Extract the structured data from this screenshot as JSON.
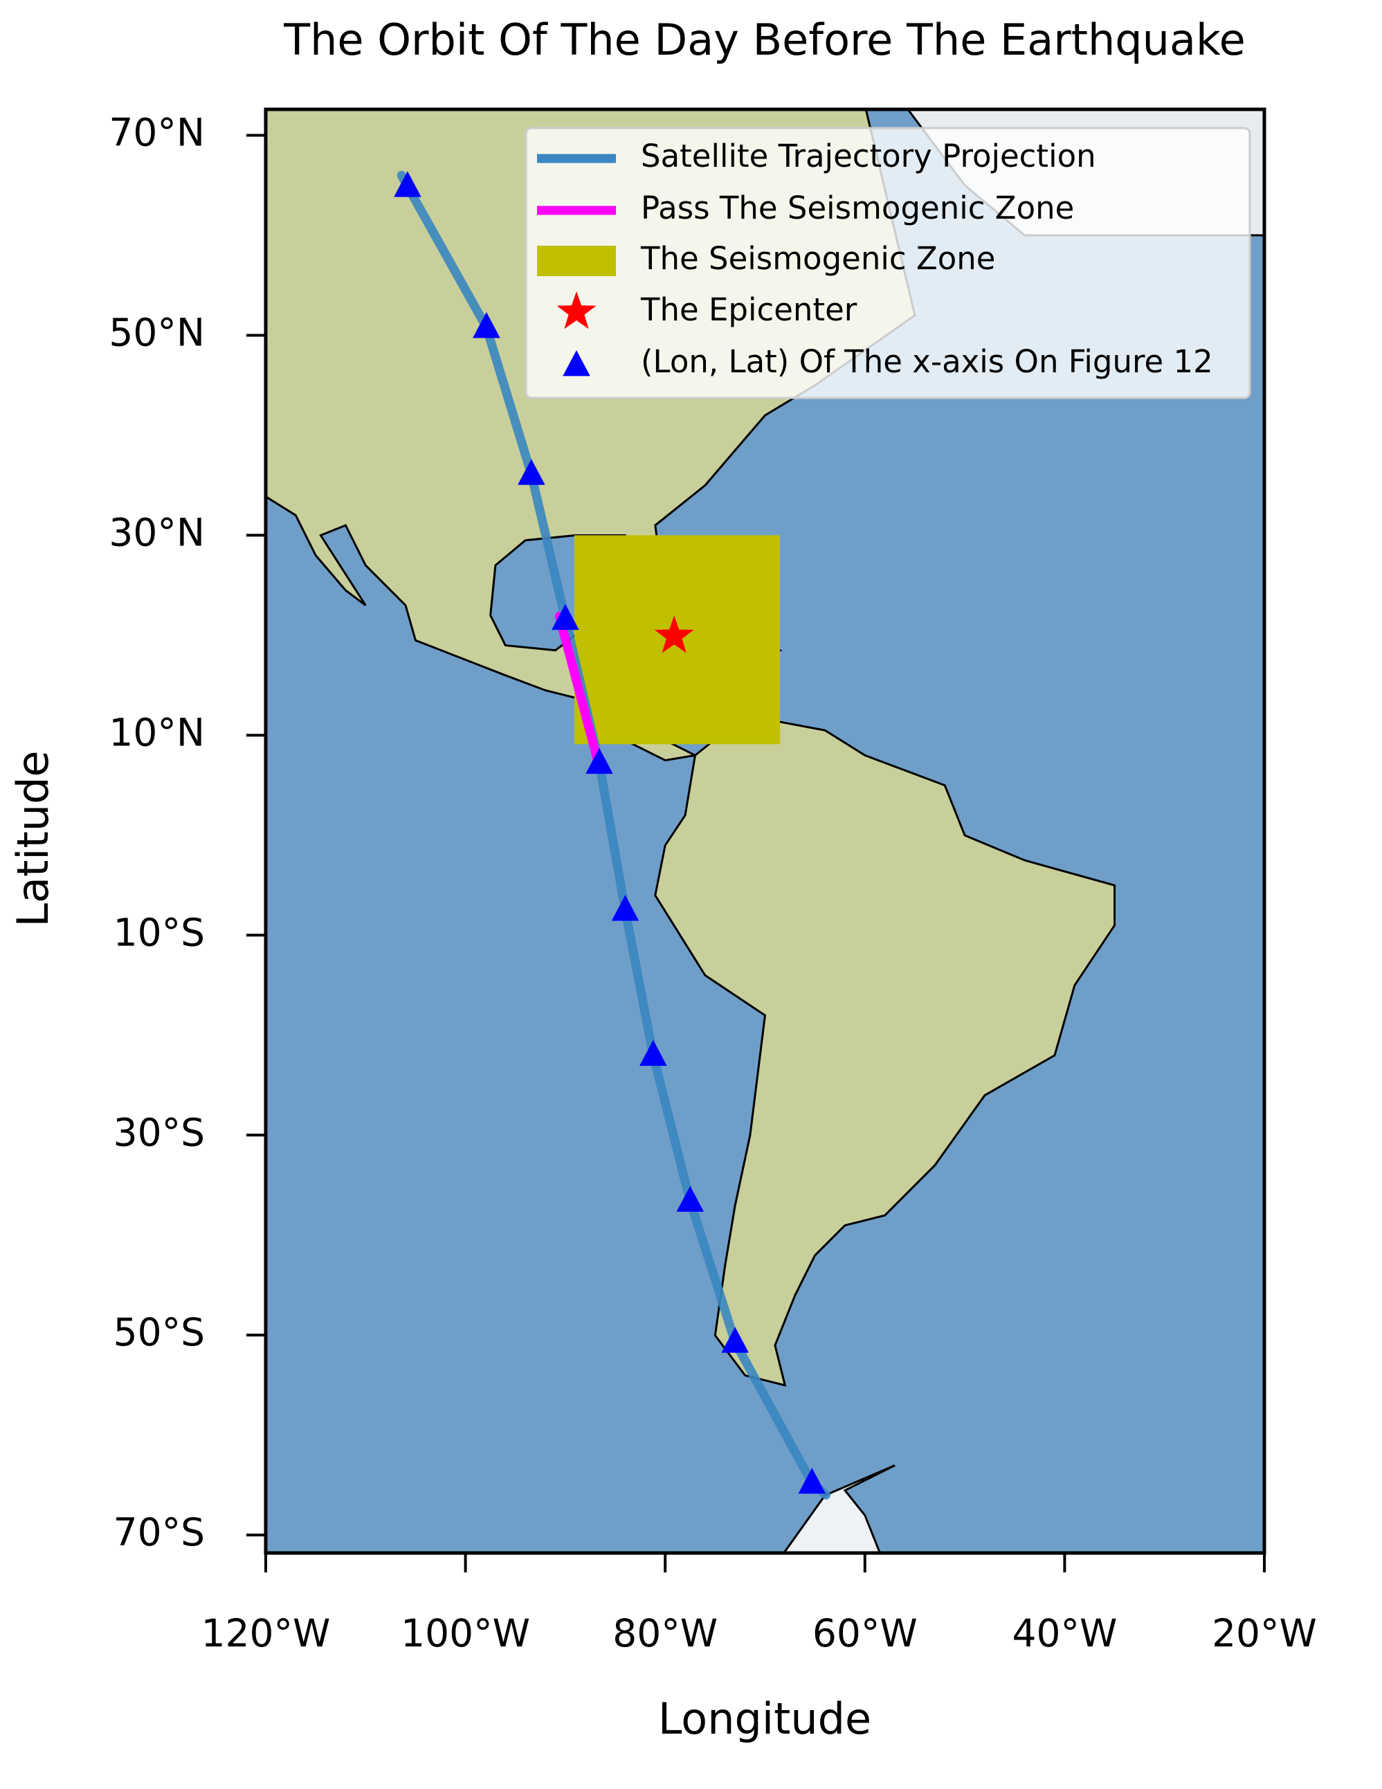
{
  "chart_data": {
    "type": "map",
    "title": "The Orbit Of The Day Before The Earthquake",
    "xlabel": "Longitude",
    "ylabel": "Latitude",
    "xlim": [
      -120,
      -20
    ],
    "ylim": [
      -71.8,
      72.6
    ],
    "xticks": [
      {
        "value": -120,
        "label": "120°W"
      },
      {
        "value": -100,
        "label": "100°W"
      },
      {
        "value": -80,
        "label": "80°W"
      },
      {
        "value": -60,
        "label": "60°W"
      },
      {
        "value": -40,
        "label": "40°W"
      },
      {
        "value": -20,
        "label": "20°W"
      }
    ],
    "yticks": [
      {
        "value": 70,
        "label": "70°N"
      },
      {
        "value": 50,
        "label": "50°N"
      },
      {
        "value": 30,
        "label": "30°N"
      },
      {
        "value": 10,
        "label": "10°N"
      },
      {
        "value": -10,
        "label": "10°S"
      },
      {
        "value": -30,
        "label": "30°S"
      },
      {
        "value": -50,
        "label": "50°S"
      },
      {
        "value": -70,
        "label": "70°S"
      }
    ],
    "series": [
      {
        "name": "Satellite Trajectory Projection",
        "color": "#3a86c1",
        "kind": "line",
        "x": [
          -106.4,
          -105.8,
          -97.9,
          -93.4,
          -90.0,
          -86.6,
          -84.0,
          -81.2,
          -77.5,
          -73.0,
          -65.3,
          -63.9
        ],
        "y": [
          66.0,
          64.9,
          50.8,
          36.1,
          21.6,
          7.2,
          -7.5,
          -22.0,
          -36.6,
          -50.7,
          -64.8,
          -66.0
        ]
      },
      {
        "name": "Pass The Seismogenic Zone",
        "color": "#ff00ff",
        "kind": "line",
        "x": [
          -90.6,
          -86.8
        ],
        "y": [
          21.9,
          7.6
        ]
      },
      {
        "name": "The Seismogenic Zone",
        "color": "#c0c000",
        "kind": "rect",
        "x": [
          -89.1,
          -68.5
        ],
        "y": [
          9.1,
          30.0
        ]
      },
      {
        "name": "The Epicenter",
        "color": "#ff0000",
        "kind": "star",
        "x": [
          -79.1
        ],
        "y": [
          19.9
        ]
      },
      {
        "name": "(Lon, Lat) Of The x-axis On Figure 12",
        "color": "#0000ff",
        "kind": "triangle",
        "x": [
          -105.8,
          -97.9,
          -93.4,
          -90.0,
          -86.6,
          -84.0,
          -81.2,
          -77.5,
          -73.0,
          -65.3
        ],
        "y": [
          64.9,
          50.8,
          36.1,
          21.6,
          7.2,
          -7.5,
          -22.0,
          -36.6,
          -50.7,
          -64.8
        ]
      }
    ]
  }
}
